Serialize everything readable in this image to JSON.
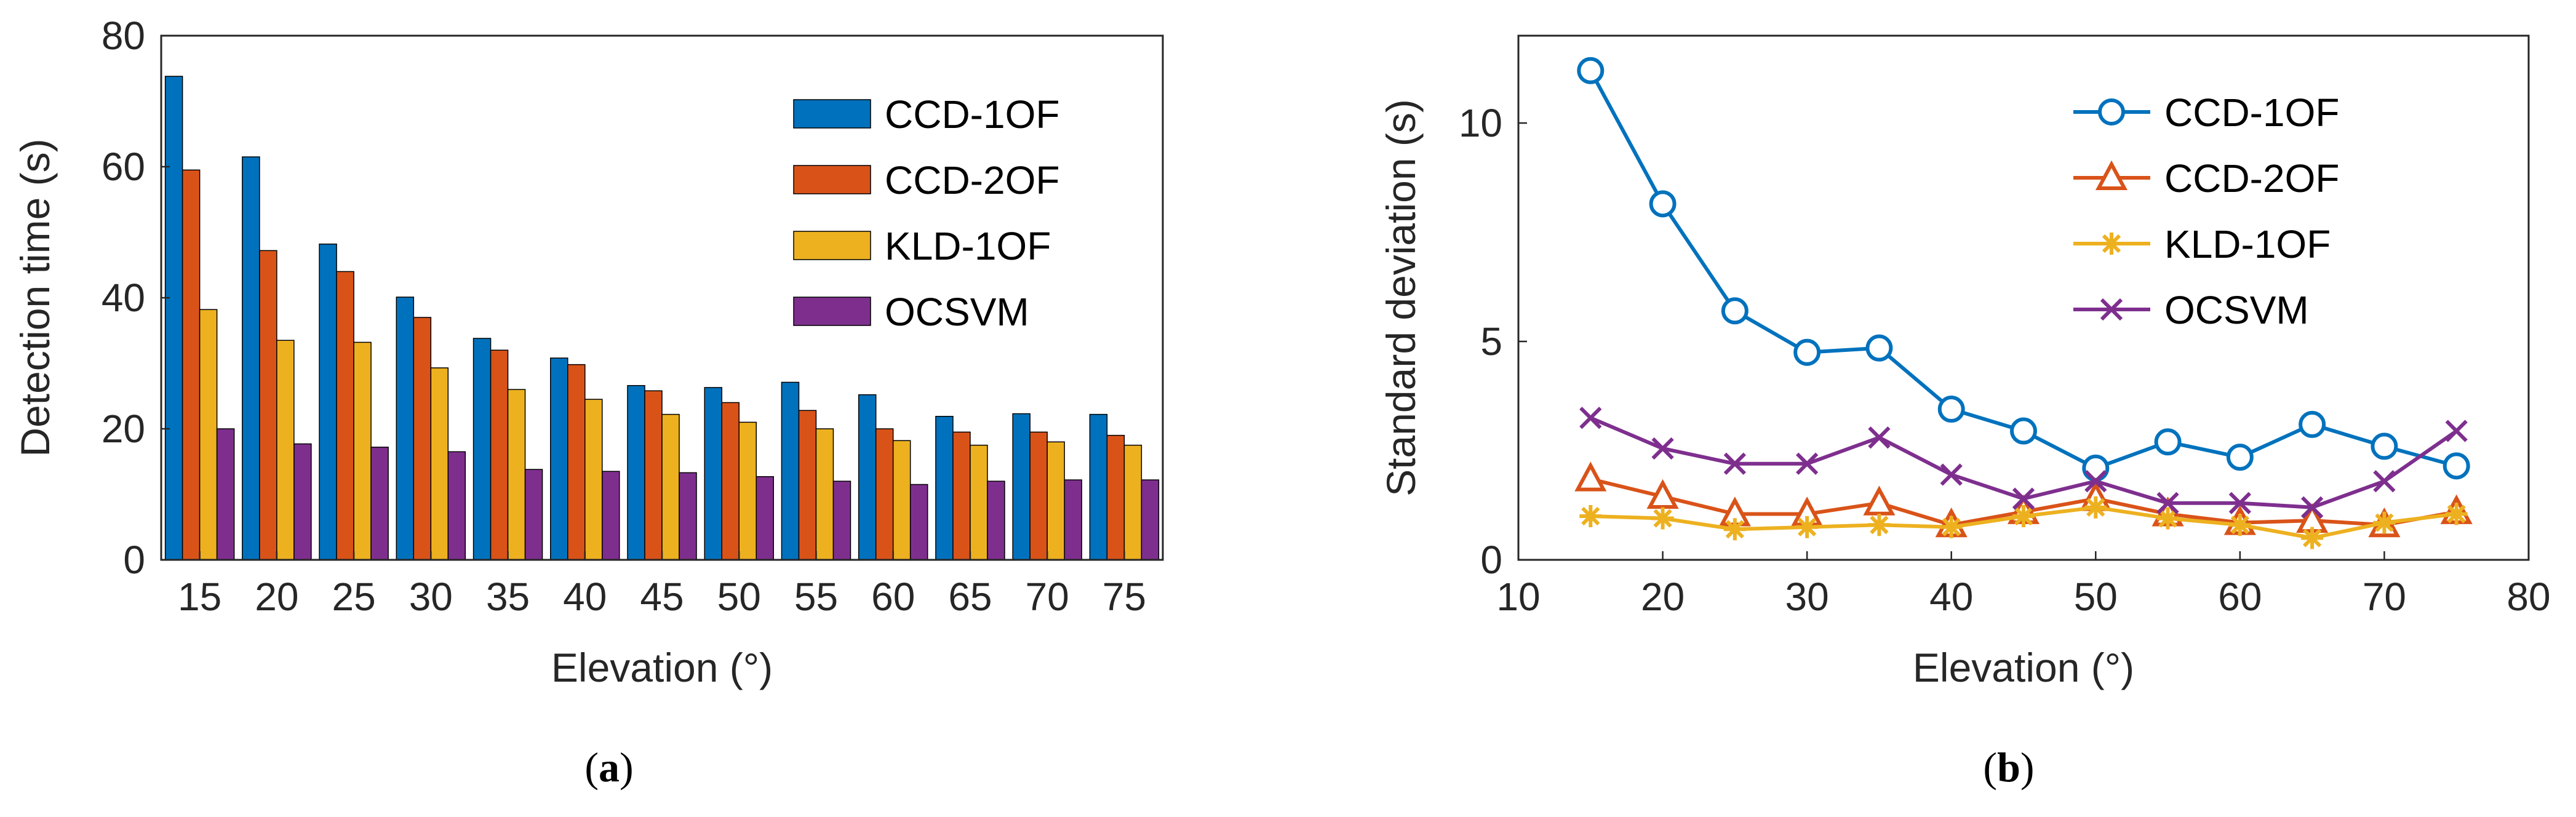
{
  "chart_data": [
    {
      "type": "bar",
      "panel_label": "a",
      "xlabel": "Elevation (°)",
      "ylabel": "Detection time (s)",
      "ylim": [
        0,
        80
      ],
      "yticks": [
        "0",
        "20",
        "40",
        "60",
        "80"
      ],
      "categories": [
        "15",
        "20",
        "25",
        "30",
        "35",
        "40",
        "45",
        "50",
        "55",
        "60",
        "65",
        "70",
        "75"
      ],
      "legend_position": "top-right",
      "series": [
        {
          "name": "CCD-1OF",
          "color": "#0072BD",
          "values": [
            73.8,
            61.5,
            48.2,
            40.1,
            33.8,
            30.8,
            26.6,
            26.3,
            27.1,
            25.2,
            21.9,
            22.3,
            22.2
          ]
        },
        {
          "name": "CCD-2OF",
          "color": "#D95319",
          "values": [
            59.5,
            47.2,
            44.0,
            37.0,
            32.0,
            29.8,
            25.8,
            24.0,
            22.8,
            20.0,
            19.5,
            19.5,
            19.0
          ]
        },
        {
          "name": "KLD-1OF",
          "color": "#EDB120",
          "values": [
            38.2,
            33.5,
            33.2,
            29.3,
            26.0,
            24.5,
            22.2,
            21.0,
            20.0,
            18.2,
            17.5,
            18.0,
            17.5
          ]
        },
        {
          "name": "OCSVM",
          "color": "#7E2F8E",
          "values": [
            20.0,
            17.7,
            17.2,
            16.5,
            13.8,
            13.5,
            13.3,
            12.7,
            12.0,
            11.5,
            12.0,
            12.2,
            12.2
          ]
        }
      ]
    },
    {
      "type": "line",
      "panel_label": "b",
      "xlabel": "Elevation (°)",
      "ylabel": "Standard deviation (s)",
      "xlim": [
        10,
        80
      ],
      "ylim": [
        0,
        12
      ],
      "xticks": [
        "10",
        "20",
        "30",
        "40",
        "50",
        "60",
        "70",
        "80"
      ],
      "yticks": [
        "0",
        "5",
        "10"
      ],
      "x": [
        15,
        20,
        25,
        30,
        35,
        40,
        45,
        50,
        55,
        60,
        65,
        70,
        75
      ],
      "legend_position": "top-right",
      "series": [
        {
          "name": "CCD-1OF",
          "color": "#0072BD",
          "marker": "circle",
          "values": [
            11.2,
            8.15,
            5.7,
            4.75,
            4.85,
            3.45,
            2.95,
            2.1,
            2.7,
            2.35,
            3.1,
            2.6,
            2.15
          ]
        },
        {
          "name": "CCD-2OF",
          "color": "#D95319",
          "marker": "triangle",
          "values": [
            1.85,
            1.45,
            1.05,
            1.05,
            1.3,
            0.8,
            1.1,
            1.4,
            1.05,
            0.85,
            0.9,
            0.8,
            1.1
          ]
        },
        {
          "name": "KLD-1OF",
          "color": "#EDB120",
          "marker": "asterisk",
          "values": [
            1.0,
            0.95,
            0.7,
            0.75,
            0.8,
            0.75,
            1.0,
            1.2,
            0.95,
            0.8,
            0.5,
            0.85,
            1.05
          ]
        },
        {
          "name": "OCSVM",
          "color": "#7E2F8E",
          "marker": "x",
          "values": [
            3.25,
            2.55,
            2.2,
            2.2,
            2.8,
            1.95,
            1.4,
            1.8,
            1.3,
            1.3,
            1.2,
            1.8,
            2.95
          ]
        }
      ]
    }
  ],
  "captions": [
    {
      "open": "(",
      "label": "a",
      "close": ")"
    },
    {
      "open": "(",
      "label": "b",
      "close": ")"
    }
  ]
}
